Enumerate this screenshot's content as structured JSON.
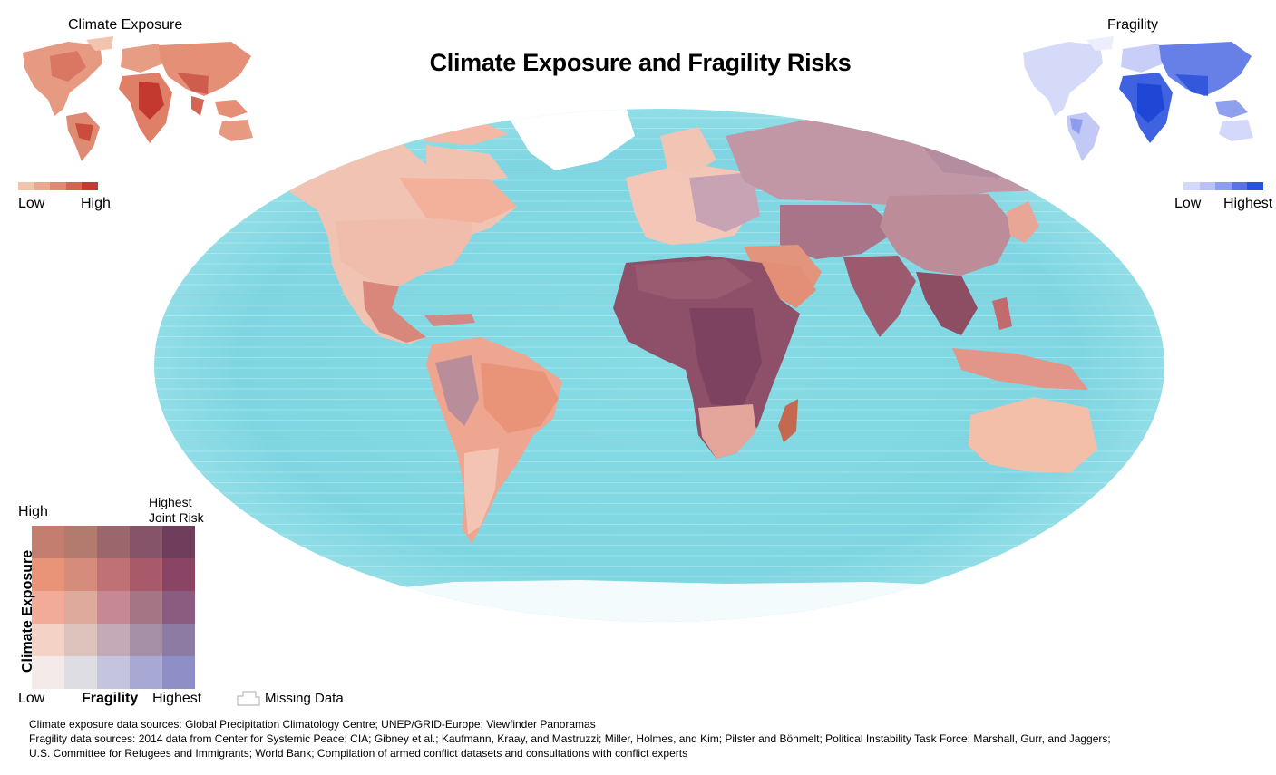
{
  "title": "Climate Exposure and Fragility Risks",
  "climate_inset": {
    "title": "Climate Exposure",
    "legend_low": "Low",
    "legend_high": "High",
    "colors": [
      "#f2c4ad",
      "#e9a88f",
      "#df8a72",
      "#d26553",
      "#c33a32"
    ]
  },
  "fragility_inset": {
    "title": "Fragility",
    "legend_low": "Low",
    "legend_high": "Highest",
    "colors": [
      "#d4d8fb",
      "#b9c1f7",
      "#8f9df0",
      "#5a72e6",
      "#2952dc"
    ]
  },
  "bivariate_legend": {
    "y_high": "High",
    "corner_line1": "Highest",
    "corner_line2": "Joint Risk",
    "y_axis": "Climate Exposure",
    "x_low": "Low",
    "x_axis": "Fragility",
    "x_high": "Highest",
    "grid_colors": [
      [
        "#c47e70",
        "#b37a6e",
        "#9c676c",
        "#855468",
        "#6f3e5c"
      ],
      [
        "#e99379",
        "#d68c7a",
        "#c07175",
        "#a85a6b",
        "#8a4565"
      ],
      [
        "#f2ab98",
        "#deaa9b",
        "#c68994",
        "#a47585",
        "#8c5b80"
      ],
      [
        "#f5d2c6",
        "#ddc3bc",
        "#c4a9b6",
        "#a690a8",
        "#8d7ba4"
      ],
      [
        "#f5eaea",
        "#dfdde4",
        "#c5c4de",
        "#a7a8d4",
        "#8e8fc7"
      ]
    ]
  },
  "missing_data_label": "Missing Data",
  "sources": {
    "climate": "Climate exposure data sources: Global Precipitation Climatology Centre; UNEP/GRID-Europe; Viewfinder Panoramas",
    "fragility_1": "Fragility data sources: 2014 data from Center for Systemic Peace; CIA; Gibney et al.; Kaufmann, Kraay, and Mastruzzi; Miller, Holmes, and Kim; Pilster and Böhmelt; Political Instability Task Force; Marshall, Gurr, and Jaggers;",
    "fragility_2": "U.S. Committee for Refugees and Immigrants; World Bank; Compilation of armed conflict datasets and consultations with conflict experts"
  },
  "map_colors": {
    "ocean": "#7fd8e3",
    "ocean_light": "#bdeef2",
    "low_joint": "#f2b8a4",
    "mid_joint": "#c98c8c",
    "high_joint": "#8a4a65",
    "ice": "#ffffff"
  }
}
